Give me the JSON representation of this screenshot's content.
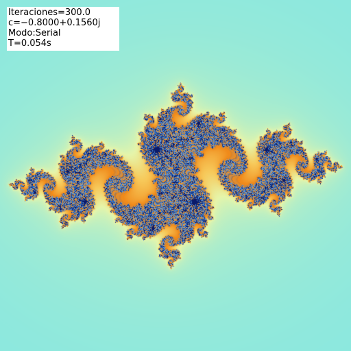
{
  "info": {
    "iterations": "Iteraciones=300.0",
    "constant": "c=−0.8000+0.1560j",
    "mode": "Modo:Serial",
    "time": "T=0.054s"
  },
  "fractal": {
    "type": "julia",
    "c_real": -0.8,
    "c_imag": 0.156,
    "max_iterations": 300,
    "colors": {
      "exterior": "#7fe6e6",
      "mid": "#f7c95a",
      "near": "#f08a1a",
      "interior": "#2050a0",
      "deep": "#0a1a6a"
    }
  }
}
